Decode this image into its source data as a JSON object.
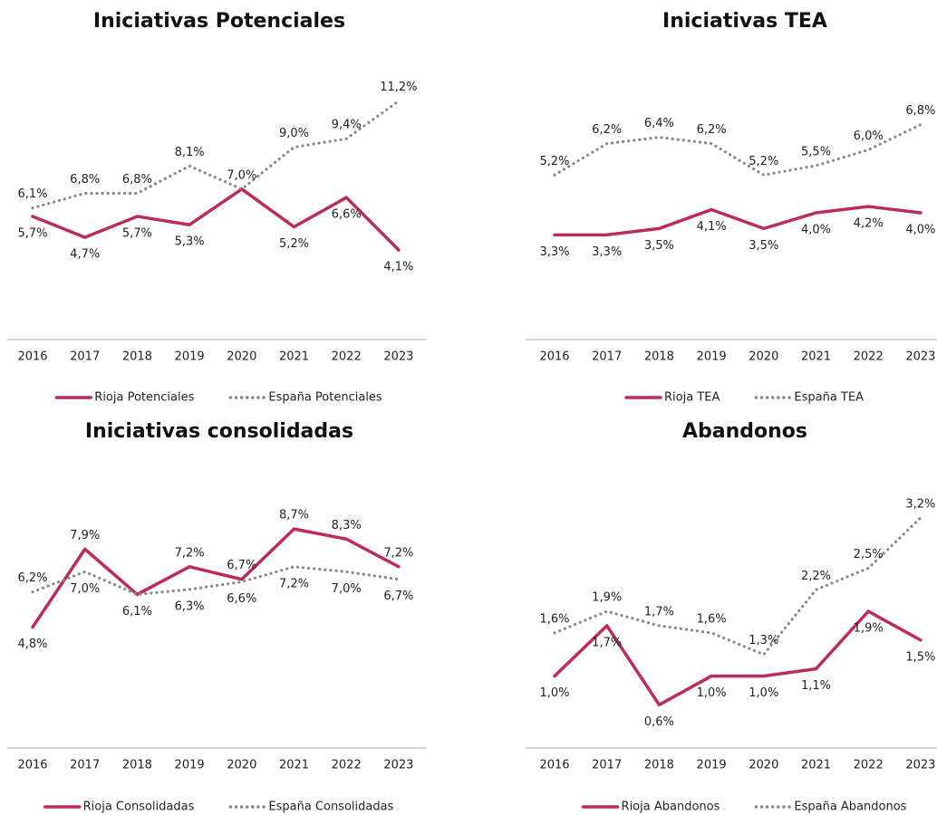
{
  "chart_data": [
    {
      "type": "line",
      "title": "Iniciativas Potenciales",
      "categories": [
        "2016",
        "2017",
        "2018",
        "2019",
        "2020",
        "2021",
        "2022",
        "2023"
      ],
      "ylim": [
        0,
        12
      ],
      "series": [
        {
          "name": "Rioja Potenciales",
          "color": "#bd2a5c",
          "style": "solid",
          "values": [
            5.7,
            4.7,
            5.7,
            5.3,
            7.0,
            5.2,
            6.6,
            4.1
          ],
          "value_labels": [
            "5,7%",
            "4,7%",
            "5,7%",
            "5,3%",
            null,
            "5,2%",
            "6,6%",
            "4,1%"
          ]
        },
        {
          "name": "España Potenciales",
          "color": "#888888",
          "style": "dotted",
          "values": [
            6.1,
            6.8,
            6.8,
            8.1,
            7.0,
            9.0,
            9.4,
            11.2
          ],
          "value_labels": [
            "6,1%",
            "6,8%",
            "6,8%",
            "8,1%",
            "7,0%",
            "9,0%",
            "9,4%",
            "11,2%"
          ]
        }
      ]
    },
    {
      "type": "line",
      "title": "Iniciativas TEA",
      "categories": [
        "2016",
        "2017",
        "2018",
        "2019",
        "2020",
        "2021",
        "2022",
        "2023"
      ],
      "ylim": [
        0,
        8
      ],
      "series": [
        {
          "name": "Rioja TEA",
          "color": "#bd2a5c",
          "style": "solid",
          "values": [
            3.3,
            3.3,
            3.5,
            4.1,
            3.5,
            4.0,
            4.2,
            4.0
          ],
          "value_labels": [
            "3,3%",
            "3,3%",
            "3,5%",
            "4,1%",
            "3,5%",
            "4,0%",
            "4,2%",
            "4,0%"
          ]
        },
        {
          "name": "España TEA",
          "color": "#888888",
          "style": "dotted",
          "values": [
            5.2,
            6.2,
            6.4,
            6.2,
            5.2,
            5.5,
            6.0,
            6.8
          ],
          "value_labels": [
            "5,2%",
            "6,2%",
            "6,4%",
            "6,2%",
            "5,2%",
            "5,5%",
            "6,0%",
            "6,8%"
          ]
        }
      ]
    },
    {
      "type": "line",
      "title": "Iniciativas consolidadas",
      "categories": [
        "2016",
        "2017",
        "2018",
        "2019",
        "2020",
        "2021",
        "2022",
        "2023"
      ],
      "ylim": [
        0,
        10
      ],
      "series": [
        {
          "name": "Rioja Consolidadas",
          "color": "#bd2a5c",
          "style": "solid",
          "values": [
            4.8,
            7.9,
            6.1,
            7.2,
            6.7,
            8.7,
            8.3,
            7.2
          ],
          "value_labels": [
            "4,8%",
            "7,9%",
            "6,1%",
            "7,2%",
            "6,7%",
            "8,7%",
            "8,3%",
            "7,2%"
          ]
        },
        {
          "name": "España Consolidadas",
          "color": "#888888",
          "style": "dotted",
          "values": [
            6.2,
            7.0,
            6.1,
            6.3,
            6.6,
            7.2,
            7.0,
            6.7
          ],
          "value_labels": [
            "6,2%",
            "7,0%",
            null,
            "6,3%",
            "6,6%",
            "7,2%",
            "7,0%",
            "6,7%"
          ]
        }
      ]
    },
    {
      "type": "line",
      "title": "Abandonos",
      "categories": [
        "2016",
        "2017",
        "2018",
        "2019",
        "2020",
        "2021",
        "2022",
        "2023"
      ],
      "ylim": [
        0,
        3.5
      ],
      "series": [
        {
          "name": "Rioja Abandonos",
          "color": "#bd2a5c",
          "style": "solid",
          "values": [
            1.0,
            1.7,
            0.6,
            1.0,
            1.0,
            1.1,
            1.9,
            1.5
          ],
          "value_labels": [
            "1,0%",
            "1,7%",
            "0,6%",
            "1,0%",
            "1,0%",
            "1,1%",
            "1,9%",
            "1,5%"
          ]
        },
        {
          "name": "España Abandonos",
          "color": "#888888",
          "style": "dotted",
          "values": [
            1.6,
            1.9,
            1.7,
            1.6,
            1.3,
            2.2,
            2.5,
            3.2
          ],
          "value_labels": [
            "1,6%",
            "1,9%",
            "1,7%",
            "1,6%",
            "1,3%",
            "2,2%",
            "2,5%",
            "3,2%"
          ]
        }
      ]
    }
  ]
}
